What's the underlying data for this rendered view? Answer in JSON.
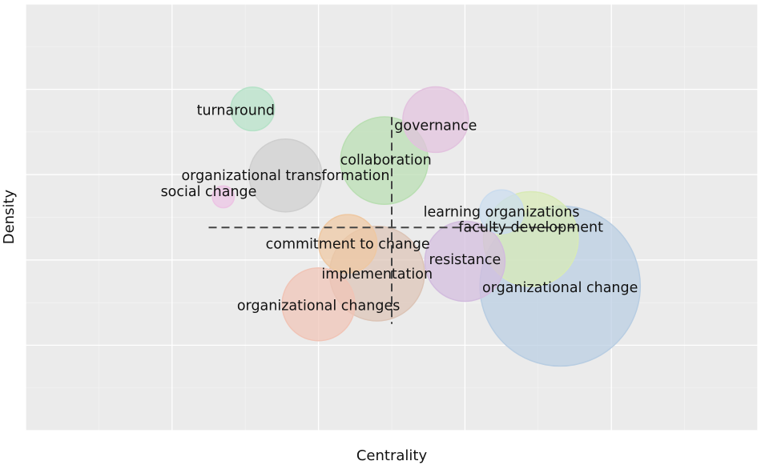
{
  "chart_data": {
    "type": "scatter",
    "title": "",
    "xlabel": "Centrality",
    "ylabel": "Density",
    "xlim": [
      0,
      100
    ],
    "ylim": [
      0,
      100
    ],
    "grid": true,
    "legend": "none",
    "reference_lines": {
      "x": 50.0,
      "y": 47.6
    },
    "points": [
      {
        "label": "turnaround",
        "x": 31.0,
        "y": 75.4,
        "size": 6,
        "color": "#b6e2c8"
      },
      {
        "label": "governance",
        "x": 56.0,
        "y": 72.9,
        "size": 9,
        "color": "#e2c2de"
      },
      {
        "label": "collaboration",
        "x": 49.0,
        "y": 63.3,
        "size": 12,
        "color": "#b9deb2"
      },
      {
        "label": "organizational transformation",
        "x": 35.5,
        "y": 59.8,
        "size": 10,
        "color": "#cecece"
      },
      {
        "label": "social change",
        "x": 27.0,
        "y": 54.8,
        "size": 3,
        "color": "#ecc4e4"
      },
      {
        "label": "learning organizations",
        "x": 65.0,
        "y": 51.3,
        "size": 6,
        "color": "#cadcee"
      },
      {
        "label": "faculty development",
        "x": 69.0,
        "y": 44.9,
        "size": 13,
        "color": "#d8eab6"
      },
      {
        "label": "commitment to change",
        "x": 44.0,
        "y": 43.8,
        "size": 8,
        "color": "#eec8a2"
      },
      {
        "label": "resistance",
        "x": 60.0,
        "y": 39.7,
        "size": 11,
        "color": "#d2bcde"
      },
      {
        "label": "implementation",
        "x": 48.0,
        "y": 36.8,
        "size": 13,
        "color": "#dcc4b6"
      },
      {
        "label": "organizational change",
        "x": 73.0,
        "y": 33.9,
        "size": 22,
        "color": "#b8cde2"
      },
      {
        "label": "organizational changes",
        "x": 40.0,
        "y": 29.6,
        "size": 10,
        "color": "#f0c4b6"
      }
    ],
    "label_text": [
      {
        "text": "turnaround",
        "x": 28.7,
        "y": 75.0
      },
      {
        "text": "governance",
        "x": 56.0,
        "y": 71.4
      },
      {
        "text": "collaboration",
        "x": 49.2,
        "y": 63.3
      },
      {
        "text": "organizational transformation",
        "x": 35.5,
        "y": 59.7
      },
      {
        "text": "social change",
        "x": 25.0,
        "y": 55.9
      },
      {
        "text": "learning organizations",
        "x": 65.0,
        "y": 51.1
      },
      {
        "text": "faculty development",
        "x": 69.0,
        "y": 47.6
      },
      {
        "text": "commitment to change",
        "x": 44.0,
        "y": 43.6
      },
      {
        "text": "resistance",
        "x": 60.0,
        "y": 40.0
      },
      {
        "text": "implementation",
        "x": 48.0,
        "y": 36.6
      },
      {
        "text": "organizational change",
        "x": 73.0,
        "y": 33.4
      },
      {
        "text": "organizational changes",
        "x": 40.0,
        "y": 29.2
      }
    ]
  }
}
